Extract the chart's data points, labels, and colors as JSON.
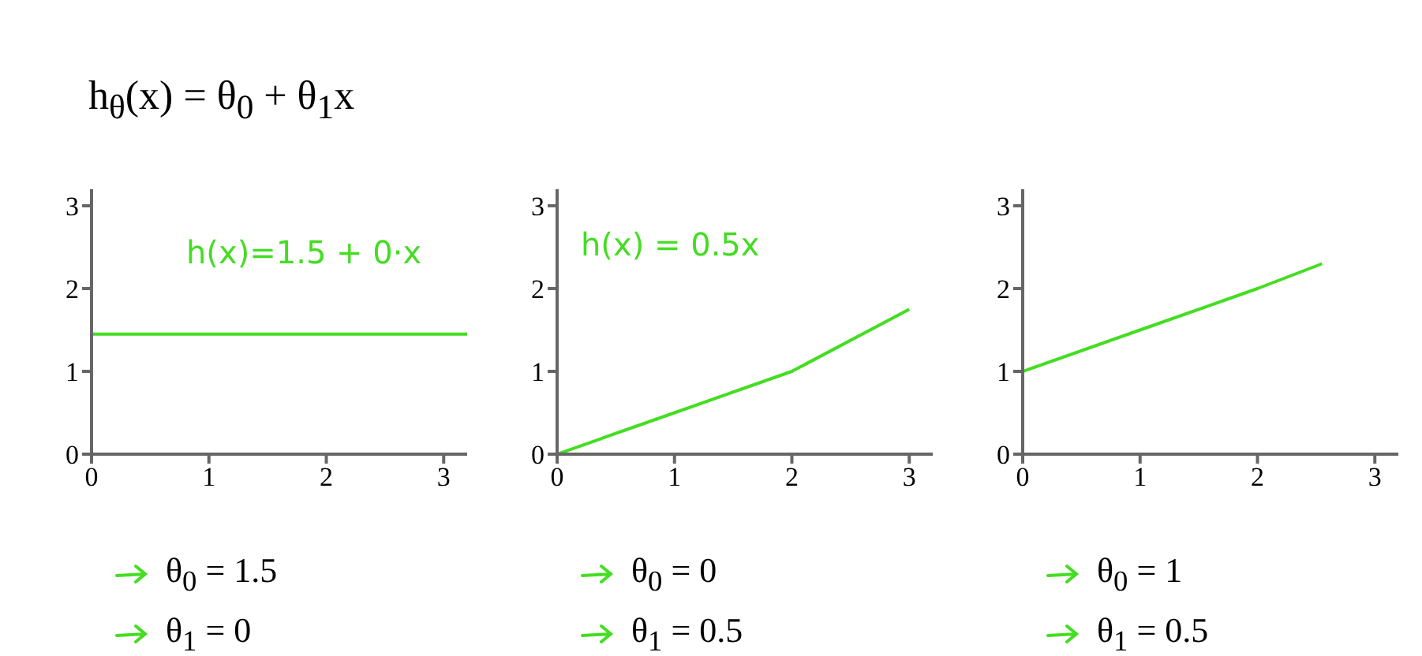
{
  "chart_data": [
    {
      "type": "line",
      "title": "h$_{θ}$(x) = θ$_{0}$ + θ$_{1}$x",
      "xlim": [
        0,
        3.2
      ],
      "ylim": [
        0,
        3.2
      ],
      "xticks": [
        0,
        1,
        2,
        3
      ],
      "yticks": [
        0,
        1,
        2,
        3
      ],
      "series": [
        {
          "color": "#44dd22",
          "x": [
            0,
            3.2
          ],
          "values": [
            1.45,
            1.45
          ]
        }
      ],
      "annotations": [
        "h(x)=1.5 + 0·x",
        "θ$_{0}$ = 1.5",
        "θ$_{1}$ = 0"
      ]
    },
    {
      "type": "line",
      "xlim": [
        0,
        3.2
      ],
      "ylim": [
        0,
        3.2
      ],
      "xticks": [
        0,
        1,
        2,
        3
      ],
      "yticks": [
        0,
        1,
        2,
        3
      ],
      "series": [
        {
          "color": "#44dd22",
          "x": [
            0,
            1,
            2,
            3
          ],
          "values": [
            0,
            0.5,
            1,
            1.75
          ]
        }
      ],
      "annotations": [
        "h(x) = 0.5x",
        "θ$_{0}$ = 0",
        "θ$_{1}$ = 0.5"
      ]
    },
    {
      "type": "line",
      "xlim": [
        0,
        3.2
      ],
      "ylim": [
        0,
        3.2
      ],
      "xticks": [
        0,
        1,
        2,
        3
      ],
      "yticks": [
        0,
        1,
        2,
        3
      ],
      "series": [
        {
          "color": "#44dd22",
          "x": [
            0,
            1,
            2,
            2.55
          ],
          "values": [
            1,
            1.5,
            2,
            2.3
          ]
        }
      ],
      "annotations": [
        "θ$_{0}$ = 1",
        "θ$_{1}$ = 0.5"
      ]
    }
  ]
}
